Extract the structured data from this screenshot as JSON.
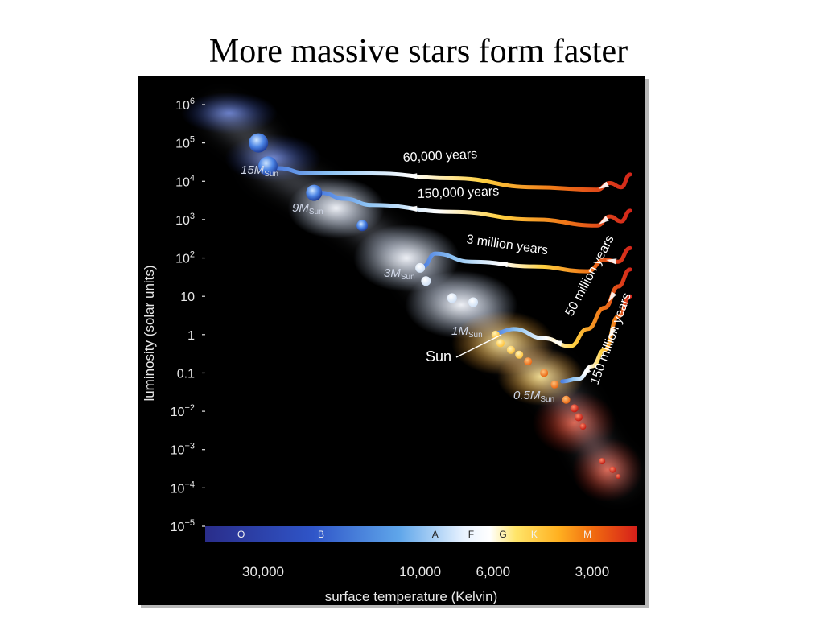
{
  "slide": {
    "title": "More massive stars form faster"
  },
  "chart_data": {
    "type": "scatter",
    "title": "",
    "xlabel": "surface temperature (Kelvin)",
    "ylabel": "luminosity (solar units)",
    "x_scale": "log",
    "y_scale": "log",
    "xlim": [
      45000,
      2200
    ],
    "ylim": [
      1e-05,
      1000000
    ],
    "x_ticks": [
      {
        "value": 30000,
        "label": "30,000"
      },
      {
        "value": 10000,
        "label": "10,000"
      },
      {
        "value": 6000,
        "label": "6,000"
      },
      {
        "value": 3000,
        "label": "3,000"
      }
    ],
    "y_ticks": [
      {
        "value": 1000000,
        "base": "10",
        "exp": "6"
      },
      {
        "value": 100000,
        "base": "10",
        "exp": "5"
      },
      {
        "value": 10000,
        "base": "10",
        "exp": "4"
      },
      {
        "value": 1000,
        "base": "10",
        "exp": "3"
      },
      {
        "value": 100,
        "base": "10",
        "exp": "2"
      },
      {
        "value": 10,
        "base": "10",
        "exp": ""
      },
      {
        "value": 1,
        "base": "1",
        "exp": ""
      },
      {
        "value": 0.1,
        "base": "0.1",
        "exp": ""
      },
      {
        "value": 0.01,
        "base": "10",
        "exp": "−2"
      },
      {
        "value": 0.001,
        "base": "10",
        "exp": "−3"
      },
      {
        "value": 0.0001,
        "base": "10",
        "exp": "−4"
      },
      {
        "value": 1e-05,
        "base": "10",
        "exp": "−5"
      }
    ],
    "spectral_classes": [
      {
        "label": "O",
        "temp": 35000
      },
      {
        "label": "B",
        "temp": 20000
      },
      {
        "label": "A",
        "temp": 9000
      },
      {
        "label": "F",
        "temp": 7000
      },
      {
        "label": "G",
        "temp": 5600
      },
      {
        "label": "K",
        "temp": 4500
      },
      {
        "label": "M",
        "temp": 3100
      }
    ],
    "tracks": [
      {
        "time": "60,000 years",
        "mass_main": "15M",
        "mass_sub": "Sun",
        "points": [
          [
            2300,
            15000
          ],
          [
            2450,
            7000
          ],
          [
            2650,
            9000
          ],
          [
            2900,
            6000
          ],
          [
            4500,
            7000
          ],
          [
            8000,
            12000
          ],
          [
            14000,
            16000
          ],
          [
            22000,
            16000
          ],
          [
            27000,
            22000
          ]
        ]
      },
      {
        "time": "150,000 years",
        "mass_main": "9M",
        "mass_sub": "Sun",
        "points": [
          [
            2300,
            1700
          ],
          [
            2450,
            900
          ],
          [
            2650,
            1200
          ],
          [
            2900,
            700
          ],
          [
            4500,
            1000
          ],
          [
            8000,
            1600
          ],
          [
            14000,
            2400
          ],
          [
            17000,
            3500
          ],
          [
            20000,
            5000
          ]
        ]
      },
      {
        "time": "3 million years",
        "mass_main": "3M",
        "mass_sub": "Sun",
        "points": [
          [
            2300,
            180
          ],
          [
            2500,
            80
          ],
          [
            2750,
            90
          ],
          [
            3100,
            45
          ],
          [
            4500,
            60
          ],
          [
            7000,
            80
          ],
          [
            9000,
            130
          ],
          [
            9800,
            60
          ]
        ]
      },
      {
        "time": "50 million years",
        "mass_main": "1M",
        "mass_sub": "Sun",
        "points": [
          [
            2300,
            50
          ],
          [
            2500,
            18
          ],
          [
            2750,
            5
          ],
          [
            3100,
            1.4
          ],
          [
            3500,
            0.5
          ],
          [
            4200,
            0.8
          ],
          [
            5200,
            1.4
          ],
          [
            5900,
            1.1
          ]
        ]
      },
      {
        "time": "150 million years",
        "mass_main": "0.5M",
        "mass_sub": "Sun",
        "points": [
          [
            2300,
            10
          ],
          [
            2500,
            3
          ],
          [
            2750,
            0.4
          ],
          [
            3000,
            0.15
          ],
          [
            3300,
            0.07
          ],
          [
            3700,
            0.06
          ]
        ]
      }
    ],
    "main_sequence_stars": [
      {
        "temp": 31000,
        "lum": 100000,
        "size": 12
      },
      {
        "temp": 29000,
        "lum": 25000,
        "size": 12
      },
      {
        "temp": 21000,
        "lum": 5000,
        "size": 10
      },
      {
        "temp": 15000,
        "lum": 700,
        "size": 7
      },
      {
        "temp": 10000,
        "lum": 55,
        "size": 6
      },
      {
        "temp": 9600,
        "lum": 25,
        "size": 6
      },
      {
        "temp": 8000,
        "lum": 9,
        "size": 6
      },
      {
        "temp": 6900,
        "lum": 7,
        "size": 6
      },
      {
        "temp": 5900,
        "lum": 1,
        "size": 5
      },
      {
        "temp": 5700,
        "lum": 0.6,
        "size": 5
      },
      {
        "temp": 5300,
        "lum": 0.4,
        "size": 5
      },
      {
        "temp": 5000,
        "lum": 0.3,
        "size": 5
      },
      {
        "temp": 4700,
        "lum": 0.2,
        "size": 5
      },
      {
        "temp": 4200,
        "lum": 0.1,
        "size": 5
      },
      {
        "temp": 3900,
        "lum": 0.05,
        "size": 5
      },
      {
        "temp": 3600,
        "lum": 0.02,
        "size": 5
      },
      {
        "temp": 3400,
        "lum": 0.012,
        "size": 5
      },
      {
        "temp": 3300,
        "lum": 0.007,
        "size": 5
      },
      {
        "temp": 3200,
        "lum": 0.004,
        "size": 4
      },
      {
        "temp": 2800,
        "lum": 0.0005,
        "size": 4
      },
      {
        "temp": 2600,
        "lum": 0.0003,
        "size": 4
      },
      {
        "temp": 2500,
        "lum": 0.0002,
        "size": 3
      }
    ],
    "sun_label": "Sun"
  }
}
